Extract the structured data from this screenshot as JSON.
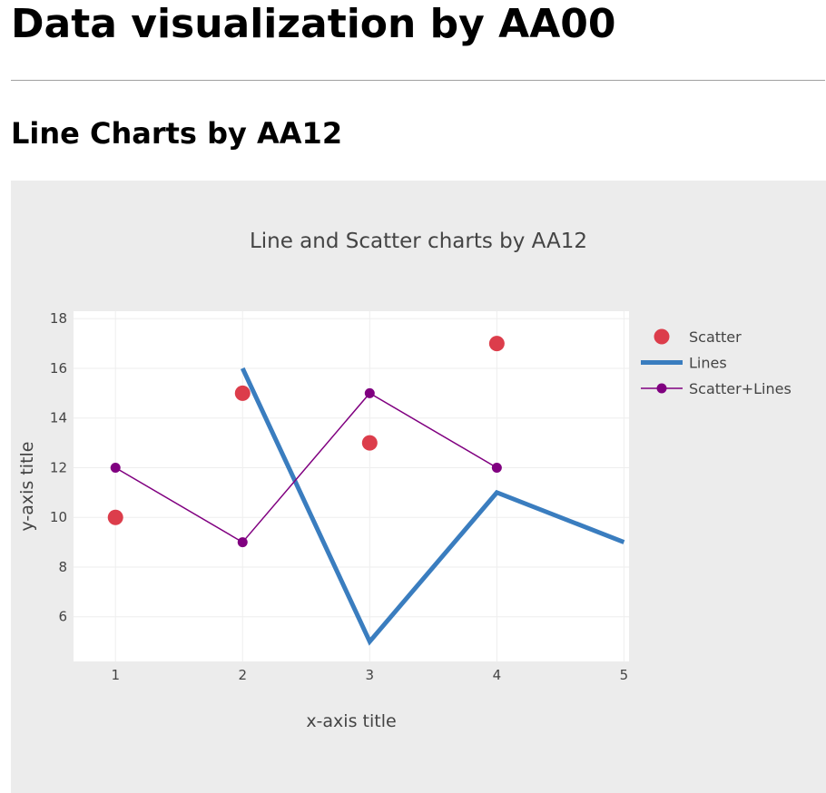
{
  "page": {
    "heading": "Data visualization by AA00",
    "subheading": "Line Charts by AA12"
  },
  "chart_data": {
    "type": "line",
    "title": "Line and Scatter charts by AA12",
    "xlabel": "x-axis title",
    "ylabel": "y-axis title",
    "xlim": [
      0.67,
      5.04
    ],
    "ylim": [
      4.2,
      18.3
    ],
    "xticks": [
      1,
      2,
      3,
      4,
      5
    ],
    "yticks": [
      6,
      8,
      10,
      12,
      14,
      16,
      18
    ],
    "grid": true,
    "legend_position": "right",
    "plot_background": "#ffffff",
    "paper_background": "#ececec",
    "series": [
      {
        "name": "Scatter",
        "mode": "markers",
        "color": "#dc3d4b",
        "x": [
          1,
          2,
          3,
          4
        ],
        "y": [
          10,
          15,
          13,
          17
        ]
      },
      {
        "name": "Lines",
        "mode": "lines",
        "color": "#3a7dbf",
        "x": [
          2,
          3,
          4,
          5
        ],
        "y": [
          16,
          5,
          11,
          9
        ]
      },
      {
        "name": "Scatter+Lines",
        "mode": "lines+markers",
        "color": "#800080",
        "x": [
          1,
          2,
          3,
          4
        ],
        "y": [
          12,
          9,
          15,
          12
        ]
      }
    ]
  }
}
